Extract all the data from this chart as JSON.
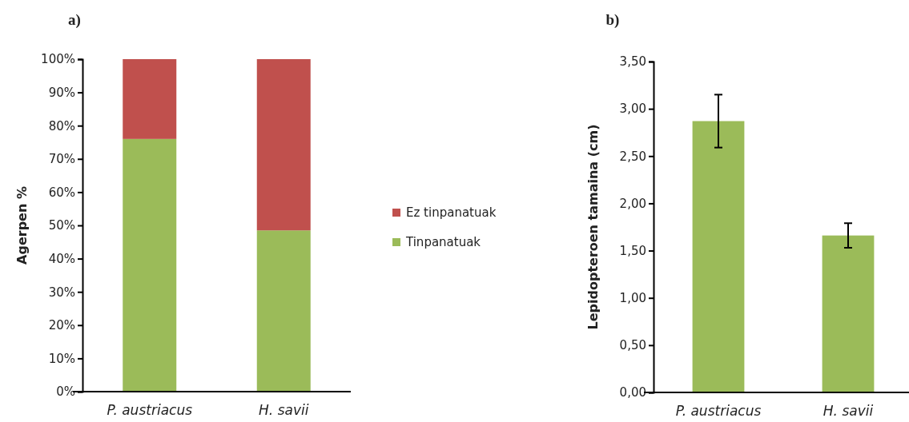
{
  "chart_data": [
    {
      "type": "bar",
      "title": "a)",
      "ylabel": "Agerpen %",
      "categories": [
        "P. austriacus",
        "H. savii"
      ],
      "stacked": true,
      "legend": "right",
      "series": [
        {
          "name": "Tinpanatuak",
          "color": "#9bbb59",
          "values": [
            76,
            48.5
          ]
        },
        {
          "name": "Ez tinpanatuak",
          "color": "#c0504d",
          "values": [
            24,
            51.5
          ]
        }
      ],
      "ylim": [
        0,
        100
      ],
      "yticks": [
        {
          "value": 0,
          "label": "0%"
        },
        {
          "value": 10,
          "label": "10%"
        },
        {
          "value": 20,
          "label": "20%"
        },
        {
          "value": 30,
          "label": "30%"
        },
        {
          "value": 40,
          "label": "40%"
        },
        {
          "value": 50,
          "label": "50%"
        },
        {
          "value": 60,
          "label": "60%"
        },
        {
          "value": 70,
          "label": "70%"
        },
        {
          "value": 80,
          "label": "80%"
        },
        {
          "value": 90,
          "label": "90%"
        },
        {
          "value": 100,
          "label": "100%"
        }
      ]
    },
    {
      "type": "bar",
      "title": "b)",
      "ylabel": "Lepidopteroen tamaina (cm)",
      "categories": [
        "P. austriacus",
        "H. savii"
      ],
      "series": [
        {
          "color": "#9bbb59",
          "values": [
            2.87,
            1.66
          ],
          "errors": [
            0.28,
            0.13
          ]
        }
      ],
      "ylim": [
        0,
        3.5
      ],
      "yticks": [
        {
          "value": 0,
          "label": "0,00"
        },
        {
          "value": 0.5,
          "label": "0,50"
        },
        {
          "value": 1,
          "label": "1,00"
        },
        {
          "value": 1.5,
          "label": "1,50"
        },
        {
          "value": 2,
          "label": "2,00"
        },
        {
          "value": 2.5,
          "label": "2,50"
        },
        {
          "value": 3,
          "label": "3,00"
        },
        {
          "value": 3.5,
          "label": "3,50"
        }
      ]
    }
  ]
}
